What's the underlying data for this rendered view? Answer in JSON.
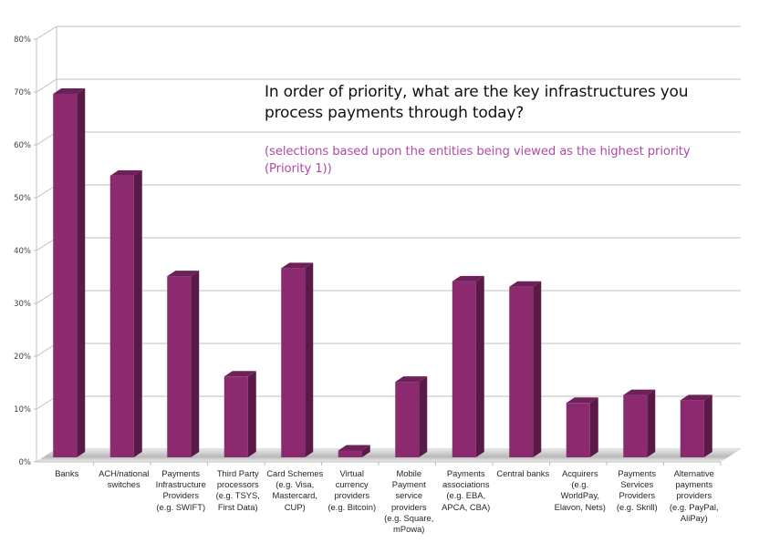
{
  "chart_data": {
    "type": "bar",
    "title": "In order of priority, what are the key infrastructures you process payments through today?",
    "subtitle": "(selections based upon the entities being viewed as the highest priority (Priority 1))",
    "xlabel": "",
    "ylabel": "",
    "ylim": [
      0,
      80
    ],
    "yticks": [
      0,
      10,
      20,
      30,
      40,
      50,
      60,
      70,
      80
    ],
    "ytick_labels": [
      "0%",
      "10%",
      "20%",
      "30%",
      "40%",
      "50%",
      "60%",
      "70%",
      "80%"
    ],
    "grid": true,
    "categories": [
      "Banks",
      "ACH/national switches",
      "Payments Infrastructure Providers (e.g. SWIFT)",
      "Third Party processors (e.g. TSYS, First Data)",
      "Card Schemes (e.g. Visa, Mastercard, CUP)",
      "Virtual currency providers (e.g. Bitcoin)",
      "Mobile Payment service providers (e.g. Square, mPowa)",
      "Payments associations (e.g. EBA, APCA, CBA)",
      "Central banks",
      "Acquirers (e.g. WorldPay, Elavon, Nets)",
      "Payments Services Providers (e.g. Skrill)",
      "Alternative payments providers (e.g. PayPal, AliPay)"
    ],
    "category_lines": [
      [
        "Banks"
      ],
      [
        "ACH/national",
        "switches"
      ],
      [
        "Payments",
        "Infrastructure",
        "Providers",
        "(e.g. SWIFT)"
      ],
      [
        "Third Party",
        "processors",
        "(e.g. TSYS,",
        "First Data)"
      ],
      [
        "Card Schemes",
        "(e.g. Visa,",
        "Mastercard,",
        "CUP)"
      ],
      [
        "Virtual",
        "currency",
        "providers",
        "(e.g. Bitcoin)"
      ],
      [
        "Mobile",
        "Payment",
        "service",
        "providers",
        "(e.g. Square,",
        "mPowa)"
      ],
      [
        "Payments",
        "associations",
        "(e.g. EBA,",
        "APCA, CBA)"
      ],
      [
        "Central banks"
      ],
      [
        "Acquirers",
        "(e.g.",
        "WorldPay,",
        "Elavon, Nets)"
      ],
      [
        "Payments",
        "Services",
        "Providers",
        "(e.g. Skrill)"
      ],
      [
        "Alternative",
        "payments",
        "providers",
        "(e.g. PayPal,",
        "AliPay)"
      ]
    ],
    "values": [
      70,
      54.5,
      35.5,
      16.5,
      37,
      2.5,
      15.5,
      34.5,
      33.5,
      11.5,
      13,
      12
    ],
    "colors": {
      "bar_front": "#8b2a6f",
      "bar_side": "#591a47",
      "bar_top": "#6e2159",
      "grid": "#bfbfbf",
      "subtitle": "#b04aa6"
    }
  }
}
